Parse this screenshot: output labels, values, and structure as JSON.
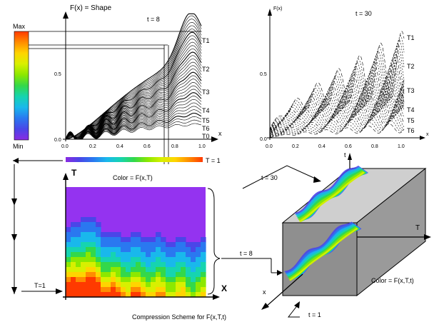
{
  "left_plot": {
    "title": "F(x) = Shape",
    "time_label": "t = 8",
    "x_label": "x",
    "x_ticks": [
      "0.0",
      "0.2",
      "0.4",
      "0.6",
      "0.8",
      "1.0"
    ],
    "y_ticks": [
      "0.0",
      "0.5"
    ],
    "curve_labels": [
      "T1",
      "T2",
      "T3",
      "T4",
      "T5",
      "T6"
    ],
    "bottom_label": "T0"
  },
  "right_plot": {
    "title": "F(x)",
    "time_label": "t = 30",
    "x_label": "x",
    "x_ticks": [
      "0.0",
      "0.2",
      "0.4",
      "0.6",
      "0.8",
      "1.0"
    ],
    "y_ticks": [
      "0.0",
      "0.5"
    ],
    "curve_labels": [
      "T1",
      "T2",
      "T3",
      "T4",
      "T5",
      "T6"
    ]
  },
  "colorbar": {
    "max_label": "Max",
    "min_label": "Min",
    "t1_label": "T = 1",
    "colors": [
      "#ff3a00",
      "#ff8c00",
      "#ffd400",
      "#d8f000",
      "#8ce800",
      "#33d84a",
      "#16d4b0",
      "#19b8ec",
      "#2a78f0",
      "#4a46e8",
      "#8a2be2"
    ]
  },
  "heatmap": {
    "t_axis": "T",
    "x_axis": "X",
    "color_label": "Color = F(x,T)",
    "t1_label": "T=1",
    "t8_label": "t = 8",
    "bg_color": "#9433f0"
  },
  "cube": {
    "t_axis": "t",
    "T_axis": "T",
    "x_axis": "x",
    "t30_label": "t = 30",
    "t1_label": "t = 1",
    "color_label": "Color = F(x,T,t)",
    "face_color": "#8f8f8f"
  },
  "caption": "Compression Scheme for F(x,T,t)"
}
